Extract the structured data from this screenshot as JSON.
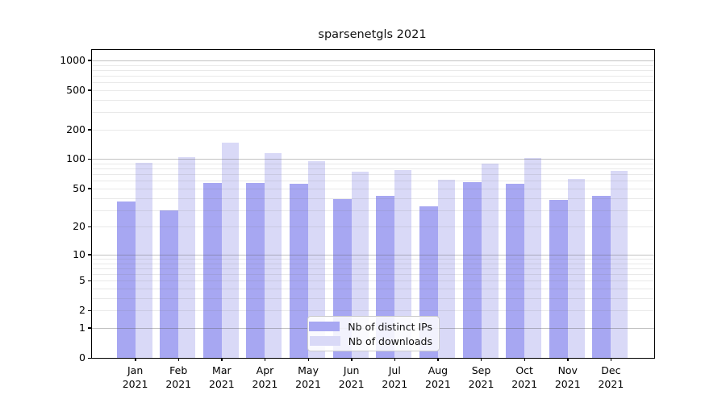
{
  "title": "sparsenetgls 2021",
  "chart_data": {
    "type": "bar",
    "title": "sparsenetgls 2021",
    "subtitle": "",
    "xlabel": "",
    "ylabel": "",
    "scale": "log(value+1)",
    "grid": true,
    "grid_on_top_of_bars": true,
    "legend_position": "bottom-center-inside",
    "categories": [
      "Jan",
      "Feb",
      "Mar",
      "Apr",
      "May",
      "Jun",
      "Jul",
      "Aug",
      "Sep",
      "Oct",
      "Nov",
      "Dec"
    ],
    "x_year_label": "2021",
    "y_ticks": [
      0,
      1,
      2,
      5,
      10,
      20,
      50,
      100,
      200,
      500,
      1000
    ],
    "ylim": [
      0,
      1275
    ],
    "series": [
      {
        "name": "Nb of distinct IPs",
        "color": "#a7a7f2",
        "values": [
          37,
          30,
          57,
          57,
          56,
          39,
          42,
          33,
          58,
          56,
          38,
          42
        ]
      },
      {
        "name": "Nb of downloads",
        "color": "#d9d9f7",
        "values": [
          91,
          105,
          148,
          116,
          95,
          75,
          77,
          62,
          90,
          102,
          63,
          76
        ]
      }
    ]
  }
}
